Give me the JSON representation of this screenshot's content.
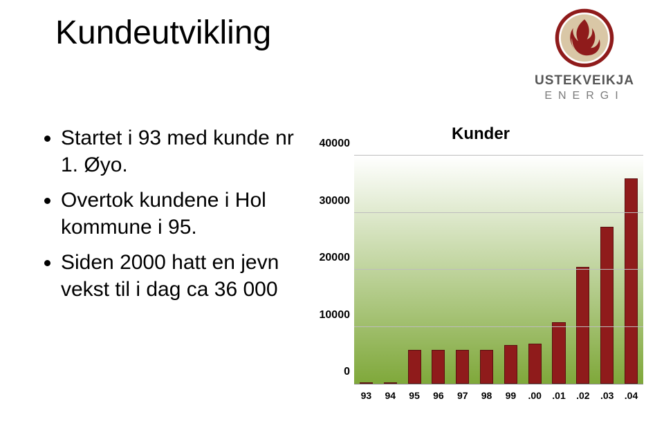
{
  "title": "Kundeutvikling",
  "logo": {
    "brand": "USTEKVEIKJA",
    "sub": "ENERGI",
    "fg": "#8f1b1b",
    "bg_circle": "#d9c7a6"
  },
  "bullets": [
    "Startet i 93 med kunde nr 1. Øyo.",
    "Overtok kundene i Hol kommune i 95.",
    "Siden 2000 hatt en jevn vekst til i dag ca 36 000"
  ],
  "chart": {
    "type": "bar",
    "title": "Kunder",
    "title_fontsize": 24,
    "categories": [
      "93",
      "94",
      "95",
      "96",
      "97",
      "98",
      "99",
      ".00",
      ".01",
      ".02",
      ".03",
      ".04"
    ],
    "values": [
      1,
      1,
      6000,
      6000,
      6000,
      6000,
      6800,
      7000,
      10800,
      20500,
      27500,
      36000
    ],
    "bar_color": "#8f1b1b",
    "bar_border": "#5a0f0f",
    "bar_width": 0.55,
    "ylim": [
      0,
      40000
    ],
    "yticks": [
      0,
      10000,
      20000,
      30000,
      40000
    ],
    "grid_color": "#bdbdbd",
    "plot_bg_top": "#ffffff",
    "plot_bg_bottom": "#7fa83a",
    "label_fontsize": 14,
    "axis_label_fontsize": 16
  }
}
